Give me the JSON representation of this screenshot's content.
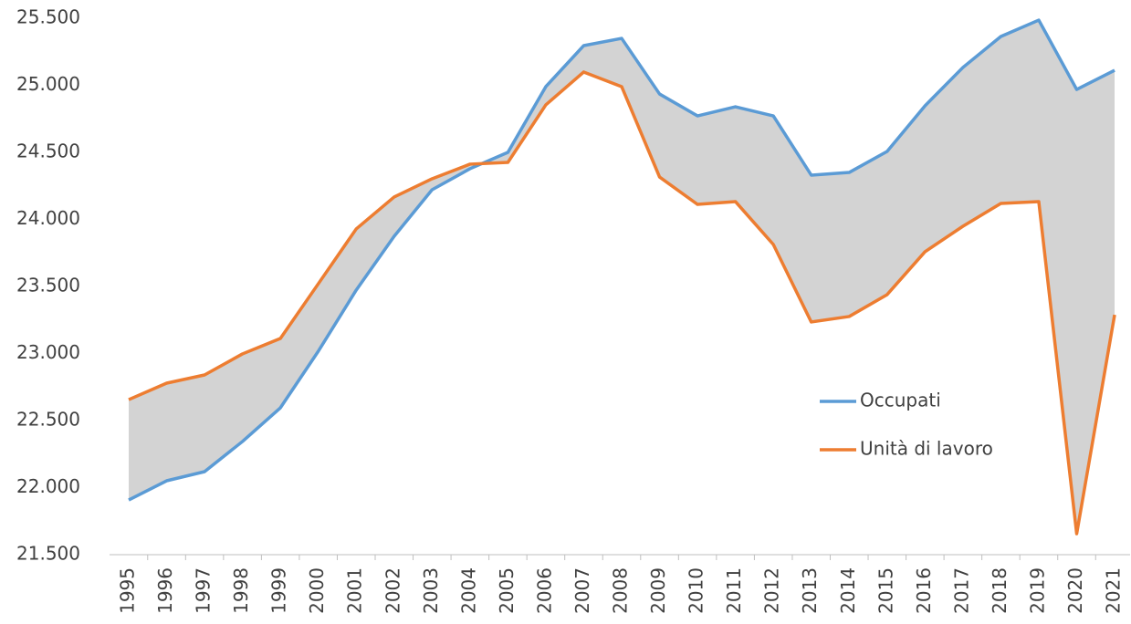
{
  "chart_data": {
    "type": "line",
    "categories": [
      "1995",
      "1996",
      "1997",
      "1998",
      "1999",
      "2000",
      "2001",
      "2002",
      "2003",
      "2004",
      "2005",
      "2006",
      "2007",
      "2008",
      "2009",
      "2010",
      "2011",
      "2012",
      "2013",
      "2014",
      "2015",
      "2016",
      "2017",
      "2018",
      "2019",
      "2020",
      "2021"
    ],
    "series": [
      {
        "name": "Occupati",
        "color": "#5b9bd5",
        "values": [
          21908,
          22051,
          22119,
          22344,
          22595,
          23017,
          23473,
          23874,
          24221,
          24378,
          24500,
          24990,
          25296,
          25350,
          24935,
          24772,
          24840,
          24772,
          24330,
          24350,
          24507,
          24847,
          25133,
          25364,
          25486,
          24969,
          25112
        ]
      },
      {
        "name": "Unità di lavoro",
        "color": "#ed7d31",
        "values": [
          22656,
          22779,
          22840,
          22997,
          23112,
          23520,
          23929,
          24167,
          24303,
          24412,
          24425,
          24854,
          25099,
          24990,
          24316,
          24112,
          24133,
          23813,
          23235,
          23276,
          23439,
          23759,
          23949,
          24119,
          24133,
          21656,
          23289
        ]
      }
    ],
    "fill_between_color": "#d3d3d3",
    "ylim": [
      21500,
      25500
    ],
    "yticks": [
      {
        "value": 21500,
        "label": "21.500"
      },
      {
        "value": 22000,
        "label": "22.000"
      },
      {
        "value": 22500,
        "label": "22.500"
      },
      {
        "value": 23000,
        "label": "23.000"
      },
      {
        "value": 23500,
        "label": "23.500"
      },
      {
        "value": 24000,
        "label": "24.000"
      },
      {
        "value": 24500,
        "label": "24.500"
      },
      {
        "value": 25000,
        "label": "25.000"
      },
      {
        "value": 25500,
        "label": "25.500"
      }
    ],
    "grid": false,
    "legend": "lower right"
  }
}
